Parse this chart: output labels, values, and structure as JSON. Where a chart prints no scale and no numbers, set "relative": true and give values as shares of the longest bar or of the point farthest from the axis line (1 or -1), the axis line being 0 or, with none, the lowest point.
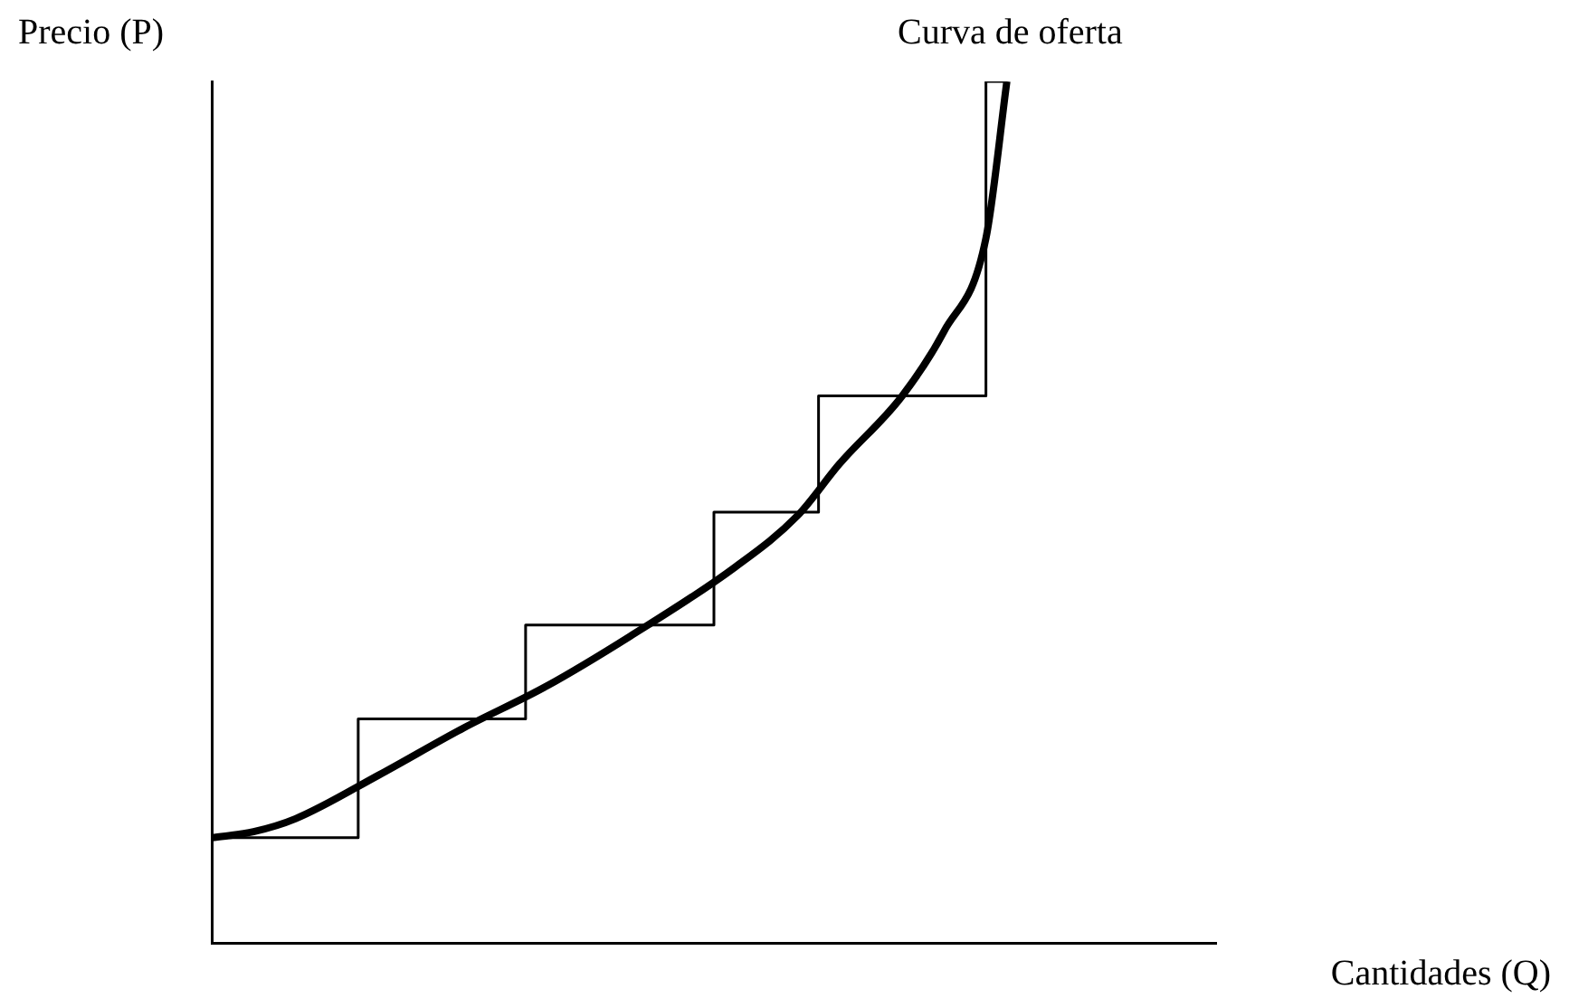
{
  "chart_data": {
    "type": "line",
    "relative": true,
    "xlabel": "Cantidades (Q)",
    "ylabel": "Precio (P)",
    "legend": false,
    "grid": false,
    "tick_labels": false,
    "marker": "none",
    "categories": [
      null,
      null,
      null,
      null,
      null,
      null,
      null,
      null,
      null,
      null,
      null,
      null,
      null,
      null,
      null,
      null,
      null,
      null,
      null,
      null,
      null,
      null,
      null,
      null,
      null,
      null,
      null,
      null,
      null,
      null,
      null,
      null,
      null,
      null,
      null,
      null,
      null,
      null,
      null,
      null,
      null,
      null,
      null,
      null,
      null,
      null,
      null,
      null,
      null
    ],
    "series": [
      {
        "type": "step",
        "color": "#000000",
        "values": [
          0.122,
          0.122,
          0.122,
          0.122,
          0.122,
          0.122,
          0.122,
          0.122,
          0.26,
          0.26,
          0.26,
          0.26,
          0.26,
          0.26,
          0.26,
          0.26,
          0.369,
          0.369,
          0.369,
          0.369,
          0.369,
          0.369,
          0.369,
          0.369,
          0.369,
          0.5,
          0.5,
          0.5,
          0.5,
          0.5,
          0.635,
          0.635,
          0.635,
          0.635,
          0.635,
          0.635,
          0.635,
          0.635,
          1.0,
          null,
          null,
          null,
          null,
          null,
          null,
          null,
          null,
          null,
          null
        ]
      },
      {
        "type": "line",
        "name": "Curva de oferta",
        "color": "#000000",
        "values": [
          0.122,
          null,
          0.129,
          null,
          0.144,
          null,
          null,
          null,
          0.195,
          null,
          null,
          null,
          0.249,
          null,
          null,
          null,
          0.298,
          null,
          null,
          null,
          0.356,
          null,
          null,
          null,
          null,
          0.436,
          null,
          null,
          0.496,
          null,
          0.556,
          null,
          null,
          0.635,
          null,
          0.71,
          null,
          0.818,
          1.0,
          null,
          null,
          null,
          null,
          null,
          null,
          null,
          null,
          null,
          null
        ]
      }
    ]
  }
}
